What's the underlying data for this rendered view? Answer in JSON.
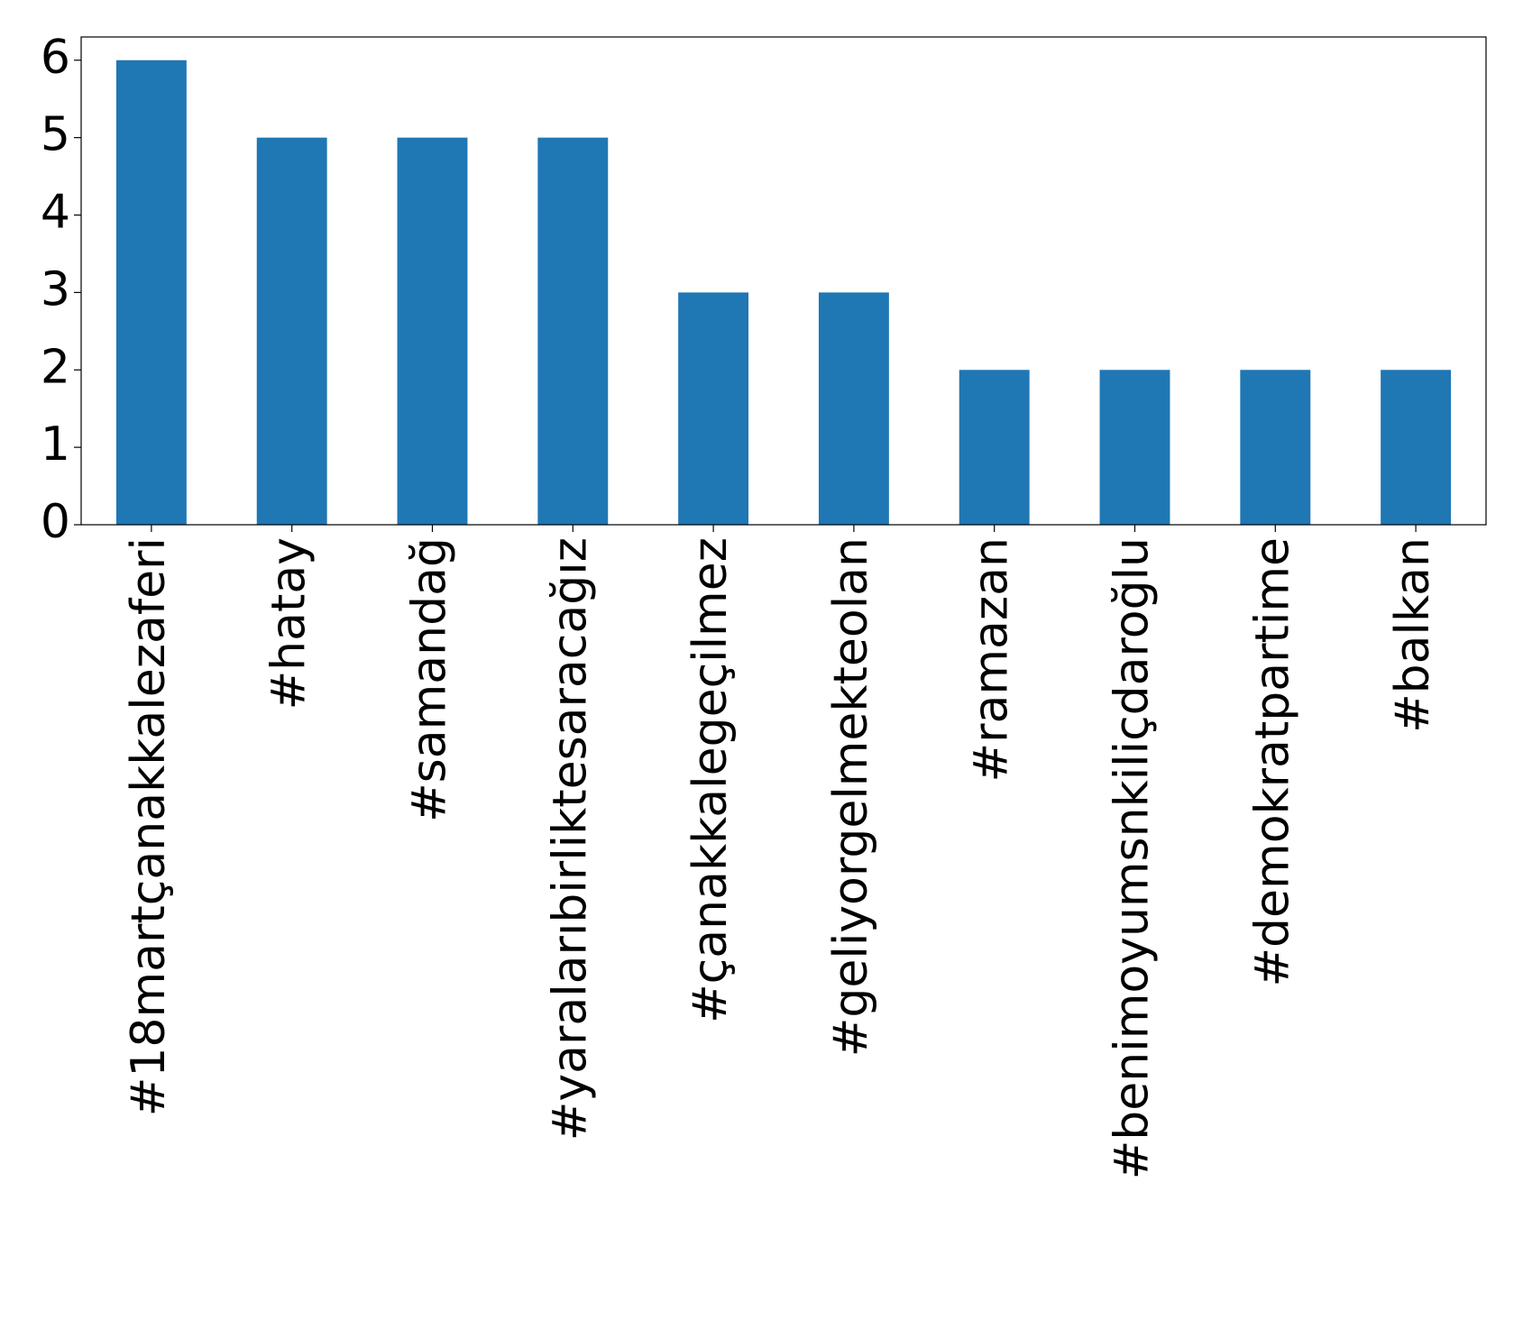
{
  "chart_data": {
    "type": "bar",
    "categories": [
      "#18martçanakkalezaferi",
      "#hatay",
      "#samandağ",
      "#yaralarıbirliktesaracağız",
      "#çanakkalegeçilmez",
      "#geliyorgelmekteolan",
      "#ramazan",
      "#benimoyumsnkiliçdaroğlu",
      "#demokratpartime",
      "#balkan"
    ],
    "values": [
      6,
      5,
      5,
      5,
      3,
      3,
      2,
      2,
      2,
      2
    ],
    "color": "#1f77b4",
    "ylim": [
      0,
      6.3
    ],
    "yticks": [
      0,
      1,
      2,
      3,
      4,
      5,
      6
    ],
    "grid": false
  }
}
